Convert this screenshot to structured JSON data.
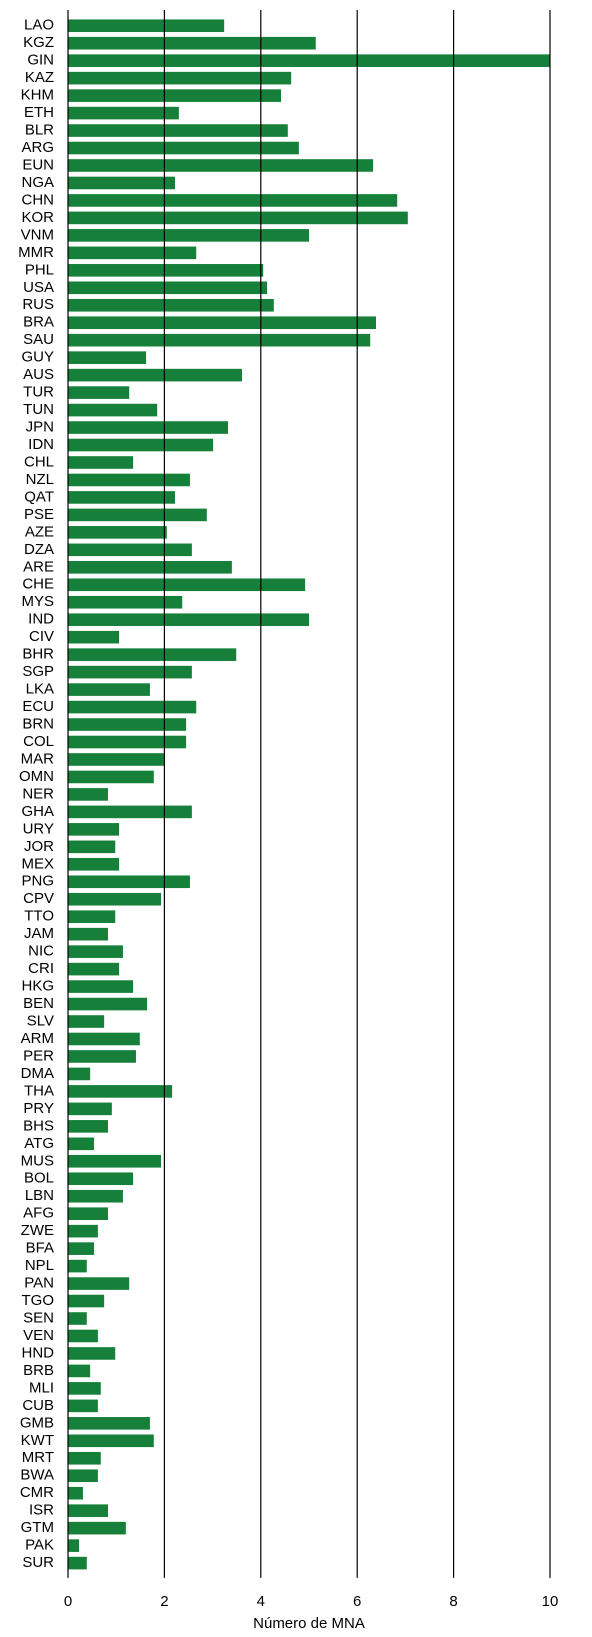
{
  "chart_data": {
    "type": "barh",
    "x_label": "Número de MNA",
    "categories": [
      "LAO",
      "KGZ",
      "GIN",
      "KAZ",
      "KHM",
      "ETH",
      "BLR",
      "ARG",
      "EUN",
      "NGA",
      "CHN",
      "KOR",
      "VNM",
      "MMR",
      "PHL",
      "USA",
      "RUS",
      "BRA",
      "SAU",
      "GUY",
      "AUS",
      "TUR",
      "TUN",
      "JPN",
      "IDN",
      "CHL",
      "NZL",
      "QAT",
      "PSE",
      "AZE",
      "DZA",
      "ARE",
      "CHE",
      "MYS",
      "IND",
      "CIV",
      "BHR",
      "SGP",
      "LKA",
      "ECU",
      "BRN",
      "COL",
      "MAR",
      "OMN",
      "NER",
      "GHA",
      "URY",
      "JOR",
      "MEX",
      "PNG",
      "CPV",
      "TTO",
      "JAM",
      "NIC",
      "CRI",
      "HKG",
      "BEN",
      "SLV",
      "ARM",
      "PER",
      "DMA",
      "THA",
      "PRY",
      "BHS",
      "ATG",
      "MUS",
      "BOL",
      "LBN",
      "AFG",
      "ZWE",
      "BFA",
      "NPL",
      "PAN",
      "TGO",
      "SEN",
      "VEN",
      "HND",
      "BRB",
      "MLI",
      "CUB",
      "GMB",
      "KWT",
      "MRT",
      "BWA",
      "CMR",
      "ISR",
      "GTM",
      "PAK",
      "SUR"
    ],
    "values": [
      3.24,
      5.14,
      10,
      4.63,
      4.42,
      2.3,
      4.56,
      4.79,
      6.33,
      2.22,
      6.83,
      7.05,
      5,
      2.66,
      4.05,
      4.13,
      4.27,
      6.39,
      6.27,
      1.62,
      3.61,
      1.27,
      1.85,
      3.32,
      3.01,
      1.35,
      2.53,
      2.22,
      2.88,
      2.05,
      2.57,
      3.4,
      4.92,
      2.37,
      5,
      1.06,
      3.49,
      2.57,
      1.7,
      2.66,
      2.45,
      2.45,
      1.99,
      1.78,
      0.83,
      2.57,
      1.06,
      0.98,
      1.06,
      2.53,
      1.93,
      0.98,
      0.83,
      1.14,
      1.06,
      1.35,
      1.64,
      0.75,
      1.49,
      1.41,
      0.46,
      2.16,
      0.91,
      0.83,
      0.54,
      1.93,
      1.35,
      1.14,
      0.83,
      0.62,
      0.54,
      0.39,
      1.27,
      0.75,
      0.39,
      0.62,
      0.98,
      0.46,
      0.68,
      0.62,
      1.7,
      1.78,
      0.68,
      0.62,
      0.31,
      0.83,
      1.2,
      0.23,
      0.39
    ],
    "color": "#16803a",
    "xlim": [
      0,
      10
    ],
    "xticks": [
      0,
      2,
      4,
      6,
      8,
      10
    ],
    "grid": true
  }
}
